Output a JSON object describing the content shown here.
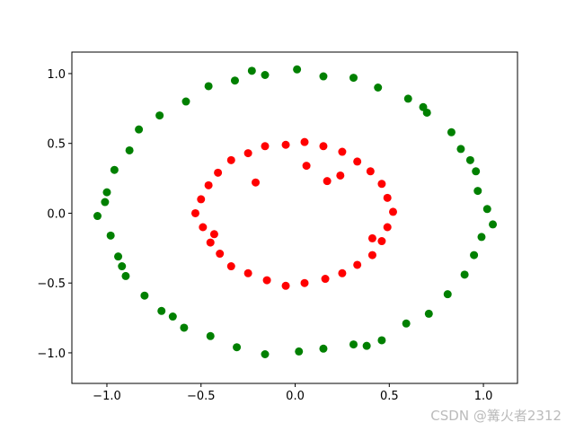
{
  "chart_data": {
    "type": "scatter",
    "xlim": [
      -1.186,
      1.181
    ],
    "ylim": [
      -1.219,
      1.154
    ],
    "xticks": [
      {
        "value": -1.0,
        "label": "−1.0"
      },
      {
        "value": -0.5,
        "label": "−0.5"
      },
      {
        "value": 0.0,
        "label": "0.0"
      },
      {
        "value": 0.5,
        "label": "0.5"
      },
      {
        "value": 1.0,
        "label": "1.0"
      }
    ],
    "yticks": [
      {
        "value": -1.0,
        "label": "−1.0"
      },
      {
        "value": -0.5,
        "label": "−0.5"
      },
      {
        "value": 0.0,
        "label": "0.0"
      },
      {
        "value": 0.5,
        "label": "0.5"
      },
      {
        "value": 1.0,
        "label": "1.0"
      }
    ],
    "grid": false,
    "series": [
      {
        "color": "#008000",
        "x": [
          1.02,
          0.97,
          0.96,
          0.88,
          0.83,
          0.7,
          0.6,
          0.44,
          0.31,
          0.15,
          0.01,
          -0.16,
          -0.32,
          -0.46,
          -0.58,
          -0.72,
          -0.83,
          -0.88,
          -0.96,
          -1.0,
          -1.05,
          -0.98,
          -0.94,
          -0.9,
          -0.8,
          -0.71,
          -0.59,
          -0.45,
          -0.31,
          -0.16,
          0.02,
          0.15,
          0.31,
          0.46,
          0.59,
          0.71,
          0.81,
          0.9,
          0.95,
          0.99,
          1.05,
          0.93,
          -0.23,
          -1.01,
          0.38,
          -0.65,
          0.68,
          -0.92
        ],
        "values": [
          0.03,
          0.16,
          0.3,
          0.46,
          0.58,
          0.72,
          0.82,
          0.9,
          0.97,
          0.98,
          1.03,
          0.99,
          0.95,
          0.91,
          0.8,
          0.7,
          0.6,
          0.45,
          0.31,
          0.15,
          -0.02,
          -0.16,
          -0.31,
          -0.45,
          -0.59,
          -0.7,
          -0.82,
          -0.88,
          -0.96,
          -1.01,
          -0.99,
          -0.97,
          -0.94,
          -0.91,
          -0.79,
          -0.72,
          -0.58,
          -0.44,
          -0.3,
          -0.17,
          -0.08,
          0.38,
          1.02,
          0.08,
          -0.95,
          -0.74,
          0.76,
          -0.38
        ]
      },
      {
        "color": "#ff0000",
        "x": [
          0.52,
          0.49,
          0.46,
          0.4,
          0.33,
          0.25,
          0.15,
          0.05,
          -0.05,
          -0.16,
          -0.25,
          -0.34,
          -0.41,
          -0.46,
          -0.5,
          -0.53,
          -0.49,
          -0.45,
          -0.4,
          -0.34,
          -0.25,
          -0.15,
          -0.05,
          0.05,
          0.16,
          0.25,
          0.33,
          0.41,
          0.46,
          0.49,
          0.17,
          -0.21,
          0.24,
          0.06,
          0.41,
          -0.43
        ],
        "values": [
          0.01,
          0.11,
          0.21,
          0.3,
          0.37,
          0.44,
          0.48,
          0.51,
          0.49,
          0.48,
          0.43,
          0.38,
          0.29,
          0.2,
          0.1,
          0.0,
          -0.1,
          -0.21,
          -0.29,
          -0.38,
          -0.43,
          -0.48,
          -0.52,
          -0.5,
          -0.47,
          -0.43,
          -0.37,
          -0.3,
          -0.2,
          -0.1,
          0.23,
          0.22,
          0.27,
          0.34,
          -0.18,
          -0.15
        ]
      }
    ],
    "watermark": "CSDN @篝火者2312"
  }
}
